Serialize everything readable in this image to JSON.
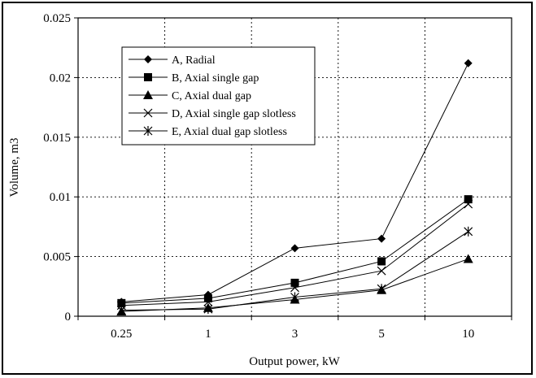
{
  "chart_data": {
    "type": "line",
    "title": "",
    "xlabel": "Output power, kW",
    "ylabel": "Volume, m3",
    "categories": [
      "0.25",
      "1",
      "3",
      "5",
      "10"
    ],
    "ylim": [
      0,
      0.025
    ],
    "yticks": [
      "0",
      "0.005",
      "0.01",
      "0.015",
      "0.02",
      "0.025"
    ],
    "grid": "dotted",
    "legend_position": "upper-left",
    "series": [
      {
        "name": "A, Radial",
        "marker": "diamond",
        "values": [
          0.0012,
          0.0018,
          0.0057,
          0.0065,
          0.0212
        ]
      },
      {
        "name": "B, Axial single gap",
        "marker": "square",
        "values": [
          0.0011,
          0.0015,
          0.0028,
          0.0046,
          0.0098
        ]
      },
      {
        "name": "C, Axial dual gap",
        "marker": "triangle",
        "values": [
          0.0004,
          0.0007,
          0.0014,
          0.0022,
          0.0048
        ]
      },
      {
        "name": "D, Axial single gap slotless",
        "marker": "x",
        "values": [
          0.0009,
          0.0012,
          0.0024,
          0.0038,
          0.0094
        ]
      },
      {
        "name": "E, Axial dual gap slotless",
        "marker": "asterisk",
        "values": [
          0.0005,
          0.0006,
          0.0016,
          0.0023,
          0.0071
        ]
      }
    ]
  }
}
